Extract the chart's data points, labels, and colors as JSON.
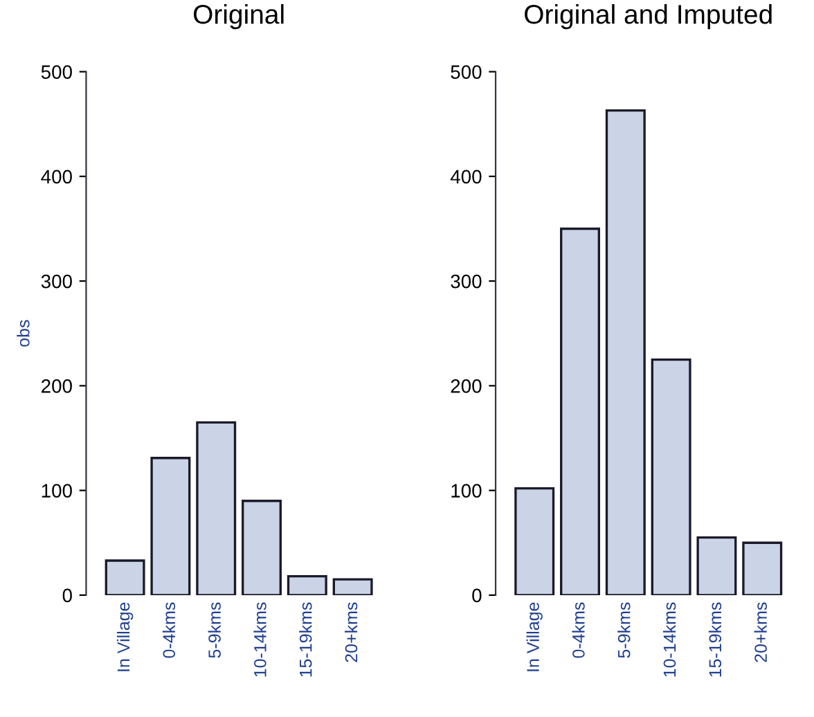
{
  "chart_data": [
    {
      "type": "bar",
      "title": "Original",
      "ylabel": "obs",
      "categories": [
        "In Village",
        "0-4kms",
        "5-9kms",
        "10-14kms",
        "15-19kms",
        "20+kms"
      ],
      "values": [
        33,
        131,
        165,
        90,
        18,
        15
      ],
      "color": "#cbd3e6",
      "ylim": [
        0,
        500
      ],
      "yticks": [
        0,
        100,
        200,
        300,
        400,
        500
      ],
      "grid": false,
      "legend": false
    },
    {
      "type": "bar",
      "title": "Original and Imputed",
      "categories": [
        "In Village",
        "0-4kms",
        "5-9kms",
        "10-14kms",
        "15-19kms",
        "20+kms"
      ],
      "values": [
        102,
        350,
        463,
        225,
        55,
        50
      ],
      "color": "#cbd3e6",
      "ylim": [
        0,
        500
      ],
      "yticks": [
        0,
        100,
        200,
        300,
        400,
        500
      ],
      "grid": false,
      "legend": false
    }
  ]
}
